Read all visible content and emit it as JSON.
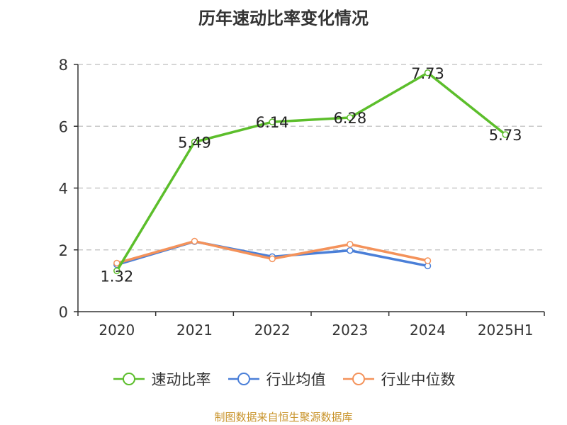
{
  "title": "历年速动比率变化情况",
  "chart_data": {
    "type": "line",
    "categories": [
      "2020",
      "2021",
      "2022",
      "2023",
      "2024",
      "2025H1"
    ],
    "ylim": [
      0,
      8
    ],
    "yticks": [
      0,
      2,
      4,
      6,
      8
    ],
    "grid": true,
    "legend_position": "bottom-center",
    "series": [
      {
        "name": "速动比率",
        "color": "#5cbe2b",
        "values": [
          1.32,
          5.49,
          6.14,
          6.28,
          7.73,
          5.73
        ],
        "labels": [
          "1.32",
          "5.49",
          "6.14",
          "6.28",
          "7.73",
          "5.73"
        ]
      },
      {
        "name": "行业均值",
        "color": "#4a7fd8",
        "values": [
          1.52,
          2.27,
          1.78,
          1.98,
          1.48,
          null
        ]
      },
      {
        "name": "行业中位数",
        "color": "#f4925a",
        "values": [
          1.57,
          2.28,
          1.71,
          2.18,
          1.65,
          null
        ]
      }
    ]
  },
  "source": "制图数据来自恒生聚源数据库"
}
